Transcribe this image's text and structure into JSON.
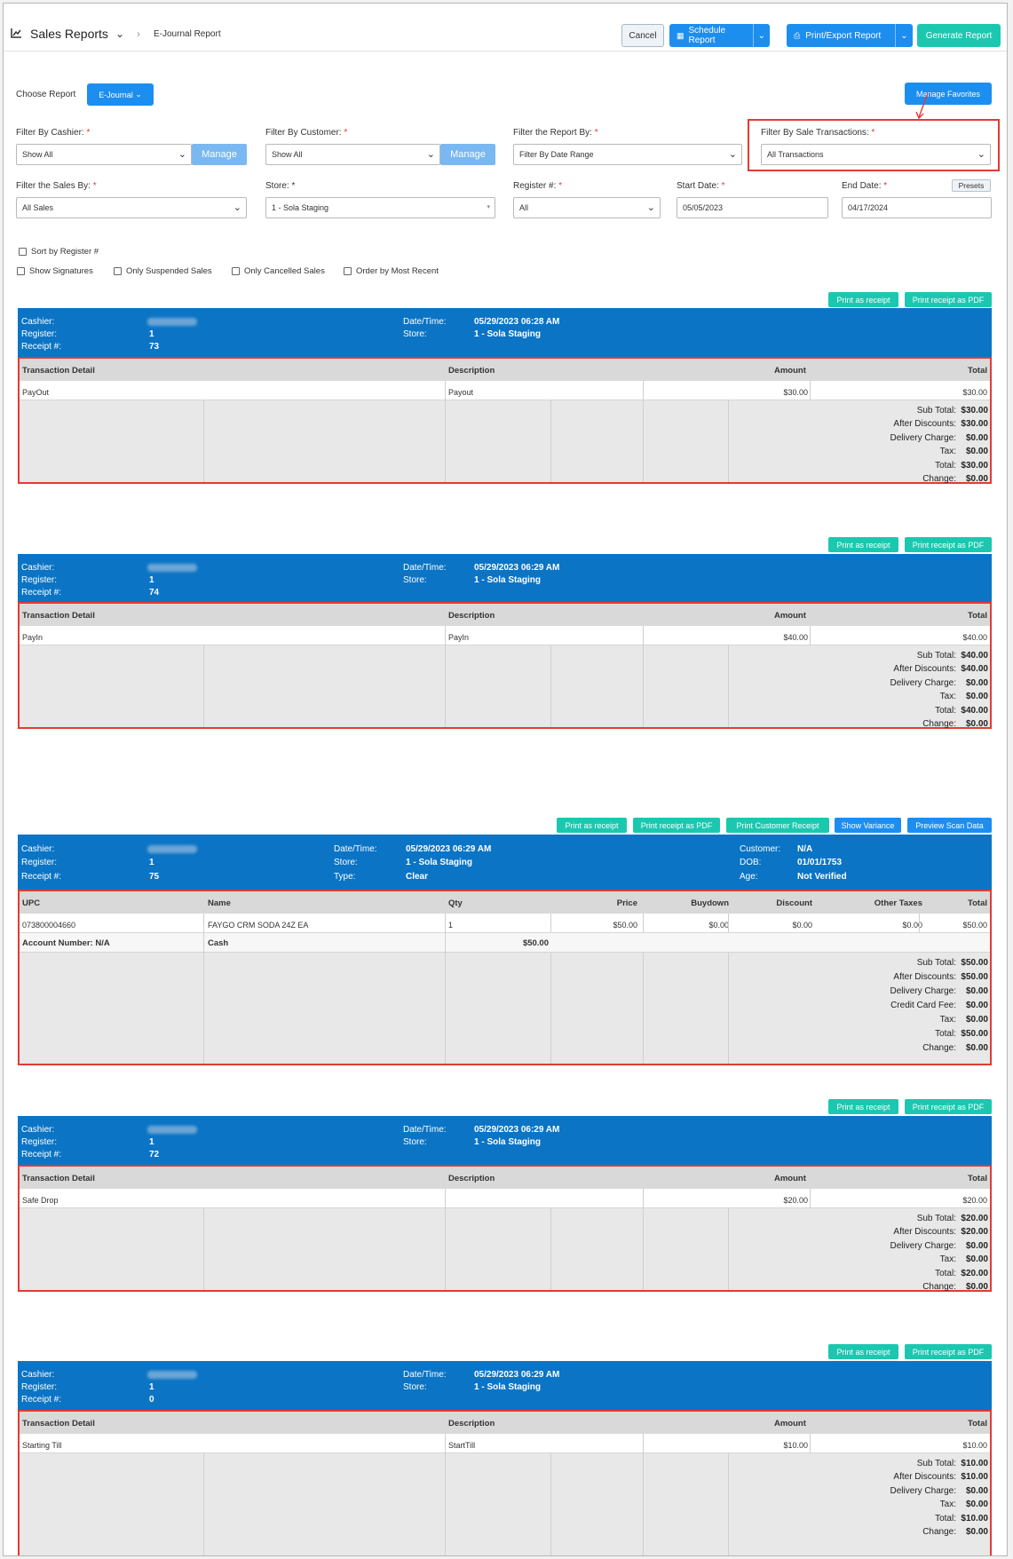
{
  "header": {
    "title": "Sales Reports",
    "breadcrumb": "E-Journal Report",
    "cancel": "Cancel",
    "schedule": "Schedule Report",
    "print_export": "Print/Export Report",
    "generate": "Generate Report"
  },
  "controls": {
    "choose_report_label": "Choose Report",
    "choose_report_value": "E-Journal",
    "manage_favorites": "Manage Favorites",
    "cashier_label": "Filter By Cashier:",
    "cashier_value": "Show All",
    "customer_label": "Filter By Customer:",
    "customer_value": "Show All",
    "manage": "Manage",
    "report_by_label": "Filter the Report By:",
    "report_by_value": "Filter By Date Range",
    "sale_tx_label": "Filter By Sale Transactions:",
    "sale_tx_value": "All Transactions",
    "sales_by_label": "Filter the Sales By:",
    "sales_by_value": "All Sales",
    "store_label": "Store:",
    "store_value": "1 - Sola Staging",
    "register_label": "Register #:",
    "register_value": "All",
    "start_label": "Start Date:",
    "start_value": "05/05/2023",
    "end_label": "End Date:",
    "end_value": "04/17/2024",
    "presets": "Presets",
    "req": "*",
    "cb_sort": "Sort by Register #",
    "cb_sig": "Show Signatures",
    "cb_susp": "Only Suspended Sales",
    "cb_cancel": "Only Cancelled Sales",
    "cb_recent": "Order by Most Recent"
  },
  "labels": {
    "cashier": "Cashier:",
    "register": "Register:",
    "receipt": "Receipt #:",
    "datetime": "Date/Time:",
    "store": "Store:",
    "type": "Type:",
    "customer": "Customer:",
    "dob": "DOB:",
    "age": "Age:",
    "th_detail": "Transaction Detail",
    "th_desc": "Description",
    "th_amount": "Amount",
    "th_total": "Total",
    "th_upc": "UPC",
    "th_name": "Name",
    "th_qty": "Qty",
    "th_price": "Price",
    "th_buydown": "Buydown",
    "th_discount": "Discount",
    "th_other": "Other Taxes",
    "sub_total": "Sub Total:",
    "after_disc": "After Discounts:",
    "delivery": "Delivery Charge:",
    "cc_fee": "Credit Card Fee:",
    "tax": "Tax:",
    "total": "Total:",
    "change": "Change:"
  },
  "buttons": {
    "print_receipt": "Print as receipt",
    "print_pdf": "Print receipt as PDF",
    "print_customer": "Print Customer Receipt",
    "show_variance": "Show Variance",
    "preview_scan": "Preview Scan Data"
  },
  "receipts": [
    {
      "register": "1",
      "receipt": "73",
      "datetime": "05/29/2023 06:28 AM",
      "store": "1 - Sola Staging",
      "detail": "PayOut",
      "desc": "Payout",
      "amount": "$30.00",
      "total": "$30.00",
      "sub_total": "$30.00",
      "after_disc": "$30.00",
      "delivery": "$0.00",
      "tax": "$0.00",
      "grand": "$30.00",
      "change": "$0.00"
    },
    {
      "register": "1",
      "receipt": "74",
      "datetime": "05/29/2023 06:29 AM",
      "store": "1 - Sola Staging",
      "detail": "PayIn",
      "desc": "PayIn",
      "amount": "$40.00",
      "total": "$40.00",
      "sub_total": "$40.00",
      "after_disc": "$40.00",
      "delivery": "$0.00",
      "tax": "$0.00",
      "grand": "$40.00",
      "change": "$0.00"
    },
    {
      "register": "1",
      "receipt": "75",
      "datetime": "05/29/2023 06:29 AM",
      "store": "1 - Sola Staging",
      "type": "Clear",
      "customer": "N/A",
      "dob": "01/01/1753",
      "age": "Not Verified",
      "upc": "073800004660",
      "name": "FAYGO CRM SODA 24Z EA",
      "qty": "1",
      "price": "$50.00",
      "buydown": "$0.00",
      "discount": "$0.00",
      "other": "$0.00",
      "total": "$50.00",
      "account": "Account Number: N/A",
      "tender": "Cash",
      "tender_amt": "$50.00",
      "sub_total": "$50.00",
      "after_disc": "$50.00",
      "delivery": "$0.00",
      "cc_fee": "$0.00",
      "tax": "$0.00",
      "grand": "$50.00",
      "change": "$0.00"
    },
    {
      "register": "1",
      "receipt": "72",
      "datetime": "05/29/2023 06:29 AM",
      "store": "1 - Sola Staging",
      "detail": "Safe Drop",
      "desc": "",
      "amount": "$20.00",
      "total": "$20.00",
      "sub_total": "$20.00",
      "after_disc": "$20.00",
      "delivery": "$0.00",
      "tax": "$0.00",
      "grand": "$20.00",
      "change": "$0.00"
    },
    {
      "register": "1",
      "receipt": "0",
      "datetime": "05/29/2023 06:29 AM",
      "store": "1 - Sola Staging",
      "detail": "Starting Till",
      "desc": "StartTill",
      "amount": "$10.00",
      "total": "$10.00",
      "sub_total": "$10.00",
      "after_disc": "$10.00",
      "delivery": "$0.00",
      "tax": "$0.00",
      "grand": "$10.00",
      "change": "$0.00"
    }
  ]
}
